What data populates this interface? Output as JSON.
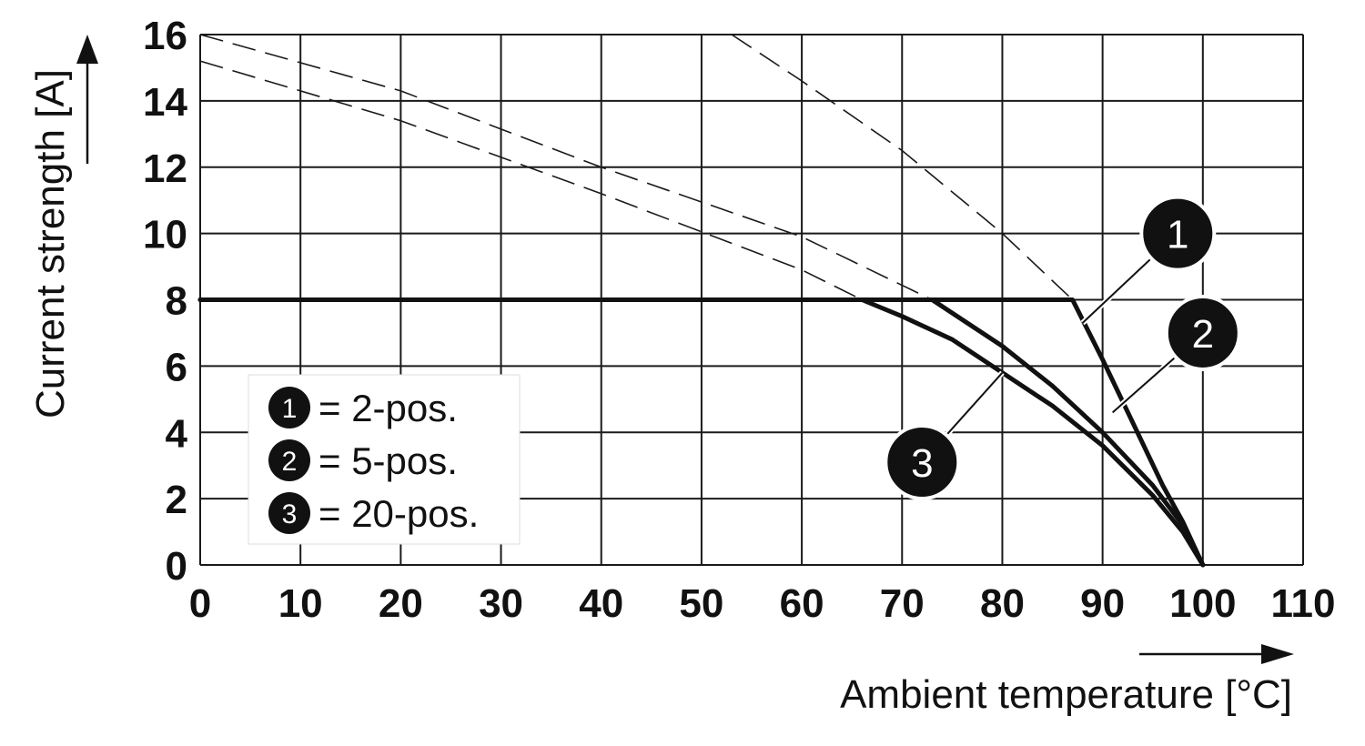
{
  "chart_data": {
    "type": "line",
    "xlabel": "Ambient temperature [°C]",
    "ylabel": "Current strength [A]",
    "xlim": [
      0,
      110
    ],
    "ylim": [
      0,
      16
    ],
    "x_ticks": [
      0,
      10,
      20,
      30,
      40,
      50,
      60,
      70,
      80,
      90,
      100,
      110
    ],
    "y_ticks": [
      0,
      2,
      4,
      6,
      8,
      10,
      12,
      14,
      16
    ],
    "grid": true,
    "series": [
      {
        "name": "2-pos.",
        "marker": "1",
        "solid": [
          [
            0,
            8
          ],
          [
            87,
            8
          ],
          [
            90,
            6.2
          ],
          [
            93,
            4.3
          ],
          [
            96,
            2.4
          ],
          [
            98,
            1.3
          ],
          [
            100,
            0
          ]
        ],
        "dashed": [
          [
            53,
            16
          ],
          [
            60,
            14.6
          ],
          [
            70,
            12.5
          ],
          [
            80,
            10
          ],
          [
            87,
            8
          ]
        ]
      },
      {
        "name": "5-pos.",
        "marker": "2",
        "solid": [
          [
            0,
            8
          ],
          [
            73,
            8
          ],
          [
            80,
            6.6
          ],
          [
            85,
            5.4
          ],
          [
            90,
            4
          ],
          [
            95,
            2.4
          ],
          [
            98,
            1.2
          ],
          [
            100,
            0
          ]
        ],
        "dashed": [
          [
            0,
            16
          ],
          [
            20,
            14.3
          ],
          [
            40,
            12
          ],
          [
            60,
            9.9
          ],
          [
            73,
            8
          ]
        ]
      },
      {
        "name": "20-pos.",
        "marker": "3",
        "solid": [
          [
            0,
            8
          ],
          [
            66,
            8
          ],
          [
            70,
            7.5
          ],
          [
            75,
            6.8
          ],
          [
            80,
            5.8
          ],
          [
            85,
            4.8
          ],
          [
            90,
            3.6
          ],
          [
            95,
            2.1
          ],
          [
            98,
            1.0
          ],
          [
            100,
            0
          ]
        ],
        "dashed": [
          [
            0,
            15.2
          ],
          [
            20,
            13.4
          ],
          [
            40,
            11.2
          ],
          [
            60,
            8.9
          ],
          [
            66,
            8
          ]
        ]
      }
    ],
    "legend": [
      {
        "marker": "1",
        "text": "= 2-pos."
      },
      {
        "marker": "2",
        "text": "= 5-pos."
      },
      {
        "marker": "3",
        "text": "= 20-pos."
      }
    ],
    "legend_placement": "bottom-left",
    "callouts": [
      {
        "marker": "1",
        "point": [
          88,
          7.3
        ],
        "label_at": [
          97.5,
          10
        ]
      },
      {
        "marker": "2",
        "point": [
          91,
          4.6
        ],
        "label_at": [
          100,
          7
        ]
      },
      {
        "marker": "3",
        "point": [
          80,
          5.8
        ],
        "label_at": [
          72,
          3.1
        ]
      }
    ]
  }
}
